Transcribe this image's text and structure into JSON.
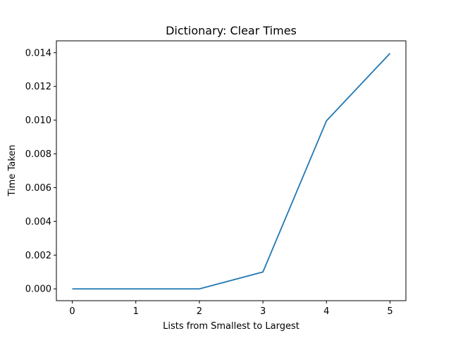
{
  "chart_data": {
    "type": "line",
    "title": "Dictionary: Clear Times",
    "xlabel": "Lists from Smallest to Largest",
    "ylabel": "Time Taken",
    "x": [
      0,
      1,
      2,
      3,
      4,
      5
    ],
    "series": [
      {
        "values": [
          0.0,
          0.0,
          0.0,
          0.001,
          0.00996,
          0.01396
        ],
        "color": "#1f77b4"
      }
    ],
    "xticks": [
      0,
      1,
      2,
      3,
      4,
      5
    ],
    "xtick_labels": [
      "0",
      "1",
      "2",
      "3",
      "4",
      "5"
    ],
    "yticks": [
      0.0,
      0.002,
      0.004,
      0.006,
      0.008,
      0.01,
      0.012,
      0.014
    ],
    "ytick_labels": [
      "0.000",
      "0.002",
      "0.004",
      "0.006",
      "0.008",
      "0.010",
      "0.012",
      "0.014"
    ],
    "xlim": [
      -0.25,
      5.25
    ],
    "ylim": [
      -0.0007,
      0.0147
    ],
    "grid": false,
    "legend": false
  }
}
